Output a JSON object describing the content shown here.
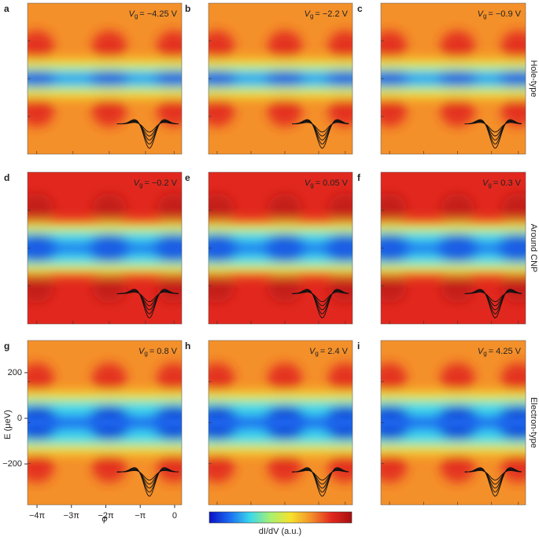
{
  "chart_data": {
    "type": "heatmap",
    "panels": [
      {
        "label": "a",
        "vg": "= −4.25 V"
      },
      {
        "label": "b",
        "vg": "= −2.2 V"
      },
      {
        "label": "c",
        "vg": "= −0.9 V"
      },
      {
        "label": "d",
        "vg": "= −0.2 V"
      },
      {
        "label": "e",
        "vg": "= 0.05 V"
      },
      {
        "label": "f",
        "vg": "= 0.3 V"
      },
      {
        "label": "g",
        "vg": "= 0.8 V"
      },
      {
        "label": "h",
        "vg": "= 2.4 V"
      },
      {
        "label": "i",
        "vg": "= 4.25 V"
      }
    ],
    "vg_symbol": "V",
    "vg_subscript": "g",
    "row_labels": [
      "Hole-type",
      "Around CNP",
      "Electron-type"
    ],
    "ylabel": "E (μeV)",
    "xlabel": "φ",
    "ylim": [
      -379,
      341
    ],
    "yticks": [
      200,
      0,
      {
        "value": -200,
        "label": "−200"
      }
    ],
    "xlim": [
      -13.43,
      0.65
    ],
    "xticks": [
      {
        "value": -12.566,
        "label": "−4π"
      },
      {
        "value": -9.425,
        "label": "−3π"
      },
      {
        "value": -6.283,
        "label": "−2π"
      },
      {
        "value": -3.142,
        "label": "−π"
      },
      0
    ],
    "colorbar_label": "dI/dV (a.u.)",
    "colormap": [
      "#0a10c8",
      "#1a6cf0",
      "#3ad8ec",
      "#a8f070",
      "#f6e22c",
      "#f4902a",
      "#e2281e",
      "#a80e10"
    ]
  }
}
